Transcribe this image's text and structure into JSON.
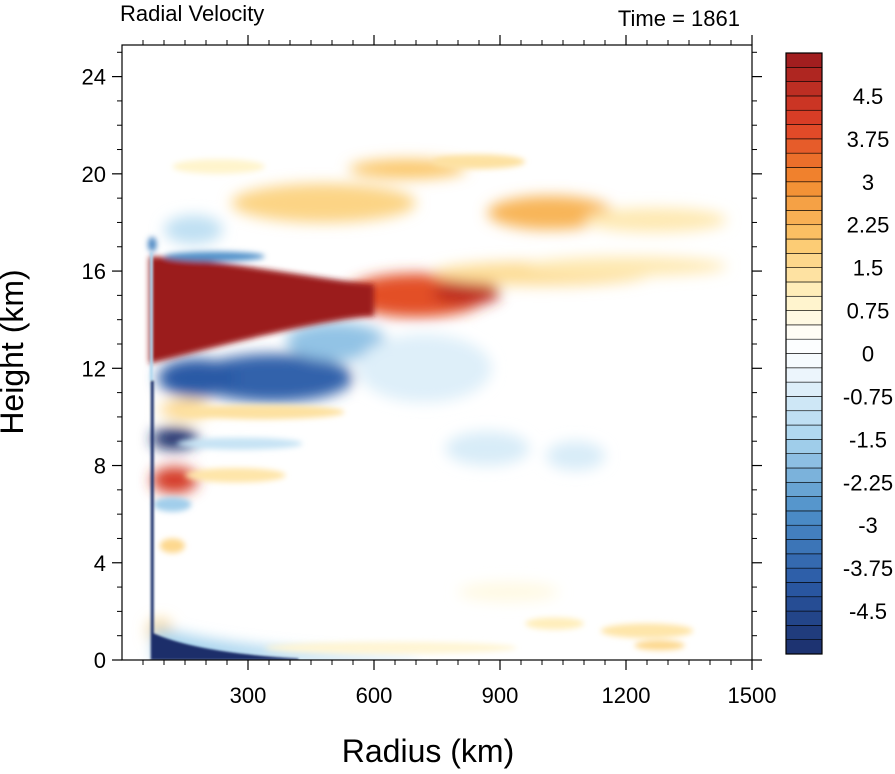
{
  "chart_data": {
    "type": "heatmap",
    "title": "Radial Velocity",
    "subtitle": "Time = 1861",
    "xlabel": "Radius (km)",
    "ylabel": "Height (km)",
    "xlim": [
      0,
      1500
    ],
    "ylim": [
      0,
      25.3
    ],
    "xticks": [
      300,
      600,
      900,
      1200,
      1500
    ],
    "xtick_labels": [
      "300",
      "600",
      "900",
      "1200",
      "1500"
    ],
    "yticks": [
      0,
      4,
      8,
      12,
      16,
      20,
      24
    ],
    "ytick_labels": [
      "0",
      "4",
      "8",
      "12",
      "16",
      "20",
      "24"
    ],
    "colorbar": {
      "min": -5.25,
      "max": 5.25,
      "step": 0.25,
      "labels": [
        {
          "value": 4.5,
          "text": "4.5"
        },
        {
          "value": 3.75,
          "text": "3.75"
        },
        {
          "value": 3.0,
          "text": "3"
        },
        {
          "value": 2.25,
          "text": "2.25"
        },
        {
          "value": 1.5,
          "text": "1.5"
        },
        {
          "value": 0.75,
          "text": "0.75"
        },
        {
          "value": 0.0,
          "text": "0"
        },
        {
          "value": -0.75,
          "text": "-0.75"
        },
        {
          "value": -1.5,
          "text": "-1.5"
        },
        {
          "value": -2.25,
          "text": "-2.25"
        },
        {
          "value": -3.0,
          "text": "-3"
        },
        {
          "value": -3.75,
          "text": "-3.75"
        },
        {
          "value": -4.5,
          "text": "-4.5"
        }
      ],
      "palette_stops": [
        {
          "value": -5.25,
          "color": "#1c2f6b"
        },
        {
          "value": -4.0,
          "color": "#2a5aa6"
        },
        {
          "value": -2.75,
          "color": "#4d8fc8"
        },
        {
          "value": -1.5,
          "color": "#a8d4ee"
        },
        {
          "value": -0.25,
          "color": "#f3f9fd"
        },
        {
          "value": 0.25,
          "color": "#ffffff"
        },
        {
          "value": 1.0,
          "color": "#fff2c4"
        },
        {
          "value": 2.0,
          "color": "#fbc76a"
        },
        {
          "value": 3.0,
          "color": "#f28a2e"
        },
        {
          "value": 4.0,
          "color": "#df4127"
        },
        {
          "value": 5.25,
          "color": "#9b1a1e"
        }
      ]
    },
    "features": [
      {
        "shape": "outflow_wedge",
        "r_start": 65,
        "r_end": 600,
        "z_center_start": 14.4,
        "z_center_end": 14.8,
        "thickness_start": 4.4,
        "thickness_end": 1.3,
        "value": 5.5
      },
      {
        "shape": "ellipse",
        "r": 700,
        "z": 15.0,
        "rx": 170,
        "rz": 0.9,
        "value": 3.8
      },
      {
        "shape": "ellipse",
        "r": 820,
        "z": 15.1,
        "rx": 80,
        "rz": 0.5,
        "value": 4.6
      },
      {
        "shape": "ellipse",
        "r": 1000,
        "z": 15.9,
        "rx": 260,
        "rz": 0.5,
        "value": 1.5
      },
      {
        "shape": "ellipse",
        "r": 1200,
        "z": 16.2,
        "rx": 240,
        "rz": 0.4,
        "value": 1.2
      },
      {
        "shape": "ellipse",
        "r": 1020,
        "z": 18.4,
        "rx": 150,
        "rz": 0.7,
        "value": 2.3
      },
      {
        "shape": "ellipse",
        "r": 1270,
        "z": 18.1,
        "rx": 170,
        "rz": 0.5,
        "value": 1.2
      },
      {
        "shape": "ellipse",
        "r": 480,
        "z": 18.8,
        "rx": 220,
        "rz": 0.8,
        "value": 1.7
      },
      {
        "shape": "ellipse",
        "r": 680,
        "z": 20.2,
        "rx": 140,
        "rz": 0.4,
        "value": 2.0
      },
      {
        "shape": "ellipse",
        "r": 850,
        "z": 20.5,
        "rx": 110,
        "rz": 0.3,
        "value": 1.4
      },
      {
        "shape": "ellipse",
        "r": 230,
        "z": 20.3,
        "rx": 110,
        "rz": 0.3,
        "value": 0.9
      },
      {
        "shape": "ellipse",
        "r": 170,
        "z": 17.7,
        "rx": 70,
        "rz": 0.6,
        "value": -1.1
      },
      {
        "shape": "ellipse",
        "r": 220,
        "z": 16.6,
        "rx": 120,
        "rz": 0.2,
        "value": -2.7
      },
      {
        "shape": "ellipse",
        "r": 360,
        "z": 11.6,
        "rx": 190,
        "rz": 1.0,
        "value": -3.8
      },
      {
        "shape": "ellipse",
        "r": 180,
        "z": 11.6,
        "rx": 95,
        "rz": 0.8,
        "value": -4.0
      },
      {
        "shape": "ellipse",
        "r": 510,
        "z": 13.1,
        "rx": 120,
        "rz": 0.8,
        "value": -1.8
      },
      {
        "shape": "ellipse",
        "r": 720,
        "z": 12.0,
        "rx": 160,
        "rz": 1.4,
        "value": -0.6
      },
      {
        "shape": "ellipse",
        "r": 330,
        "z": 10.2,
        "rx": 200,
        "rz": 0.3,
        "value": 1.4
      },
      {
        "shape": "ellipse",
        "r": 150,
        "z": 10.3,
        "rx": 60,
        "rz": 0.4,
        "value": 1.6
      },
      {
        "shape": "ellipse",
        "r": 125,
        "z": 9.1,
        "rx": 55,
        "rz": 0.45,
        "value": -5.3
      },
      {
        "shape": "ellipse",
        "r": 280,
        "z": 8.9,
        "rx": 150,
        "rz": 0.25,
        "value": -1.0
      },
      {
        "shape": "ellipse",
        "r": 125,
        "z": 7.4,
        "rx": 55,
        "rz": 0.55,
        "value": 4.2
      },
      {
        "shape": "ellipse",
        "r": 270,
        "z": 7.6,
        "rx": 120,
        "rz": 0.3,
        "value": 1.3
      },
      {
        "shape": "ellipse",
        "r": 120,
        "z": 6.4,
        "rx": 45,
        "rz": 0.3,
        "value": -1.6
      },
      {
        "shape": "ellipse",
        "r": 120,
        "z": 4.7,
        "rx": 30,
        "rz": 0.3,
        "value": 1.6
      },
      {
        "shape": "ellipse",
        "r": 870,
        "z": 8.7,
        "rx": 100,
        "rz": 0.7,
        "value": -0.7
      },
      {
        "shape": "ellipse",
        "r": 1080,
        "z": 8.4,
        "rx": 70,
        "rz": 0.6,
        "value": -0.7
      },
      {
        "shape": "ellipse",
        "r": 920,
        "z": 2.8,
        "rx": 120,
        "rz": 0.4,
        "value": 0.6
      },
      {
        "shape": "ellipse",
        "r": 1250,
        "z": 1.2,
        "rx": 110,
        "rz": 0.3,
        "value": 1.3
      },
      {
        "shape": "ellipse",
        "r": 1030,
        "z": 1.5,
        "rx": 70,
        "rz": 0.25,
        "value": 1.1
      },
      {
        "shape": "ellipse",
        "r": 1280,
        "z": 0.6,
        "rx": 60,
        "rz": 0.2,
        "value": 1.6
      },
      {
        "shape": "ellipse",
        "r": 640,
        "z": 0.5,
        "rx": 300,
        "rz": 0.25,
        "value": 0.8
      },
      {
        "shape": "ellipse",
        "r": 90,
        "z": 1.2,
        "rx": 30,
        "rz": 0.5,
        "value": 1.6
      },
      {
        "shape": "surface_inflow",
        "r_start": 75,
        "r_end": 420,
        "thickness_start": 1.1,
        "thickness_end": 0.2,
        "value": -5.3
      },
      {
        "shape": "surface_inflow",
        "r_start": 75,
        "r_end": 700,
        "thickness_start": 1.4,
        "thickness_end": 0.3,
        "value": -1.5
      },
      {
        "shape": "eyewall_line",
        "r": 72,
        "z_bottom": 0,
        "z_top": 11.5,
        "value": -5.3
      },
      {
        "shape": "eyewall_line",
        "r": 70,
        "z_bottom": 11.5,
        "z_top": 16.8,
        "value": -1.4
      },
      {
        "shape": "ellipse",
        "r": 72,
        "z": 17.1,
        "rx": 10,
        "rz": 0.3,
        "value": -3.0
      }
    ]
  }
}
